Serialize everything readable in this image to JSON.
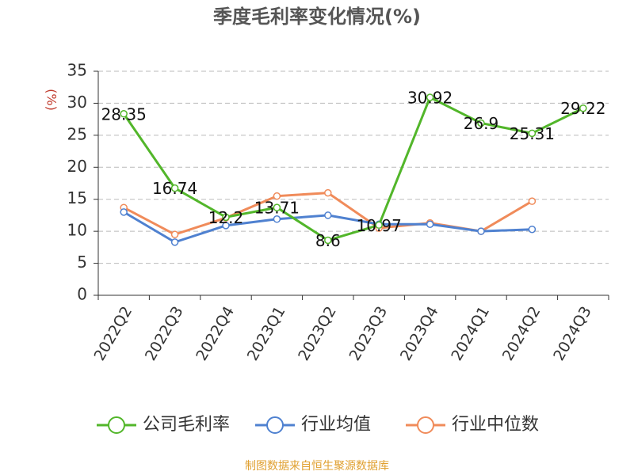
{
  "chart_data": {
    "type": "line",
    "title": "季度毛利率变化情况(%)",
    "y_label": "(%)",
    "categories": [
      "2022Q2",
      "2022Q3",
      "2022Q4",
      "2023Q1",
      "2023Q2",
      "2023Q3",
      "2023Q4",
      "2024Q1",
      "2024Q2",
      "2024Q3"
    ],
    "series": [
      {
        "name": "公司毛利率",
        "color": "#52b62a",
        "values": [
          28.35,
          16.74,
          12.2,
          13.71,
          8.6,
          10.97,
          30.92,
          26.9,
          25.31,
          29.22
        ],
        "labels": true
      },
      {
        "name": "行业均值",
        "color": "#4f81d0",
        "values": [
          13.0,
          8.3,
          10.9,
          11.9,
          12.5,
          11.1,
          11.1,
          10.0,
          10.3,
          null
        ]
      },
      {
        "name": "行业中位数",
        "color": "#f08b5a",
        "values": [
          13.7,
          9.5,
          12.1,
          15.5,
          16.0,
          10.5,
          11.3,
          10.0,
          14.7,
          null
        ]
      }
    ],
    "ylim": [
      0,
      35
    ],
    "yticks": [
      0,
      5,
      10,
      15,
      20,
      25,
      30,
      35
    ],
    "grid": true,
    "source": "制图数据来自恒生聚源数据库"
  }
}
